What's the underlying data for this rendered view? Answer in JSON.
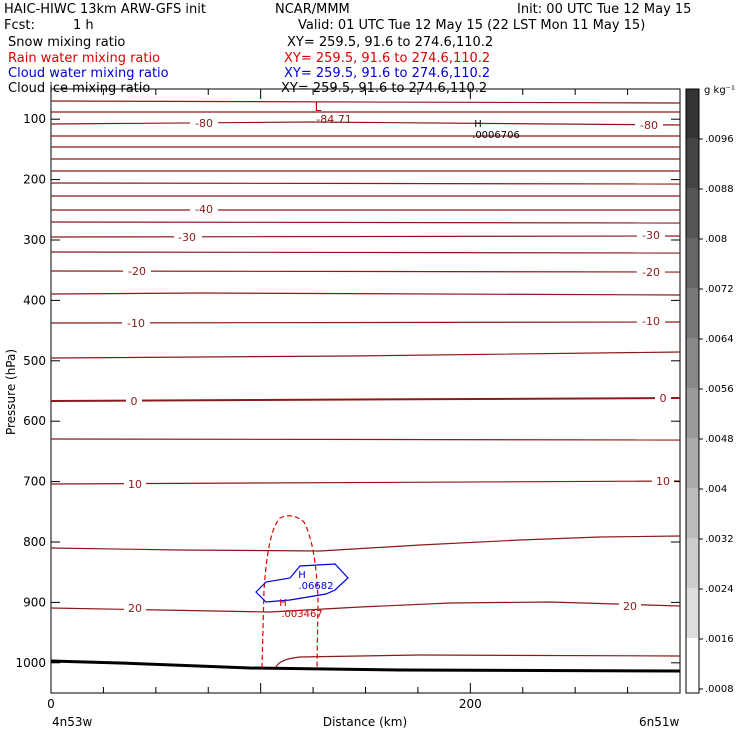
{
  "header": {
    "title_left": "HAIC-HIWC 13km ARW-GFS init",
    "org": "NCAR/MMM",
    "init": "Init: 00 UTC Tue 12 May 15",
    "fcst_label": "Fcst:",
    "fcst_value": "1 h",
    "valid": "Valid: 01 UTC Tue 12 May 15 (22 LST Mon 11 May 15)",
    "fields": [
      {
        "name": "Snow mixing ratio",
        "xy": "XY= 259.5, 91.6 to 274.6,110.2",
        "color": "#000000"
      },
      {
        "name": "Rain water mixing ratio",
        "xy": "XY= 259.5, 91.6 to 274.6,110.2",
        "color": "#e00000"
      },
      {
        "name": "Cloud water mixing ratio",
        "xy": "XY= 259.5, 91.6 to 274.6,110.2",
        "color": "#0000dd"
      },
      {
        "name": "Cloud ice mixing ratio",
        "xy": "XY= 259.5, 91.6 to 274.6,110.2",
        "color": "#000000"
      }
    ]
  },
  "chart_data": {
    "type": "contour-cross-section",
    "xlabel": "Distance (km)",
    "ylabel": "Pressure (hPa)",
    "x_ticks": [
      "0",
      "200"
    ],
    "x_range_km": [
      0,
      300
    ],
    "y_ticks": [
      "100",
      "200",
      "300",
      "400",
      "500",
      "600",
      "700",
      "800",
      "900",
      "1000"
    ],
    "y_range_hpa": [
      50,
      1050
    ],
    "x_start_label": "4n53w",
    "x_end_label": "6n51w",
    "colorbar": {
      "unit": "g kg⁻¹",
      "labels": [
        ".0096",
        ".0088",
        ".008",
        ".0072",
        ".0064",
        ".0056",
        ".0048",
        ".004",
        ".0032",
        ".0024",
        ".0016",
        ".0008"
      ]
    },
    "temperature_contour_labels": [
      "-80",
      "-80",
      "-40",
      "-30",
      "-30",
      "-20",
      "-20",
      "-10",
      "-10",
      "0",
      "0",
      "10",
      "10",
      "20",
      "20"
    ],
    "temperature_contour_color": "#8b1a1a",
    "extrema": [
      {
        "mark": "L",
        "value": "-84.71",
        "color": "#cc0000"
      },
      {
        "mark": "H",
        "value": ".0006706",
        "color": "#000000"
      },
      {
        "mark": "H",
        "value": ".06682",
        "color": "#0000dd"
      },
      {
        "mark": "H",
        "value": ".003467",
        "color": "#cc0000"
      }
    ]
  }
}
